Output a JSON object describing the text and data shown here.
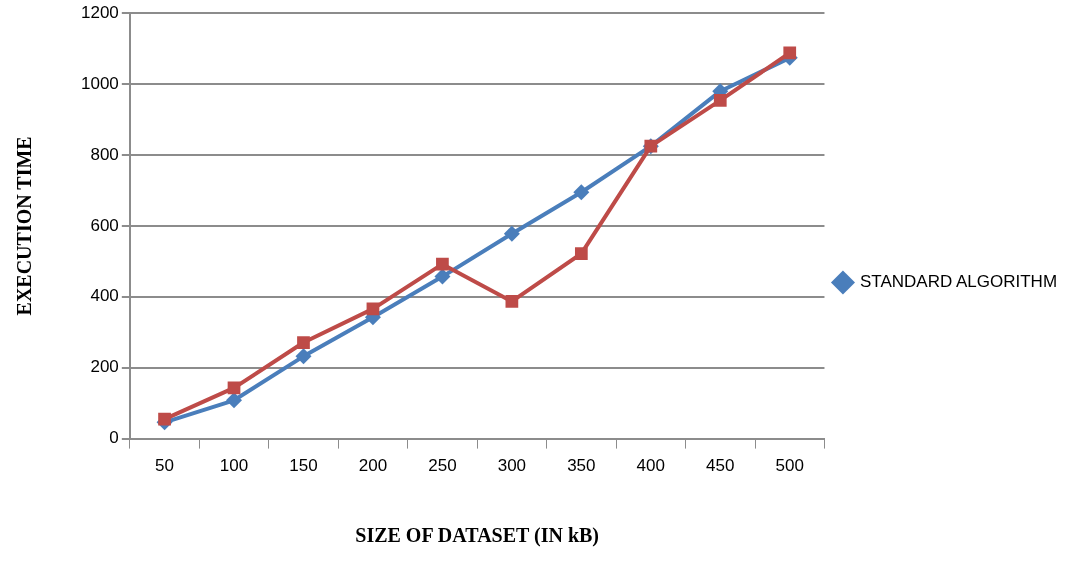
{
  "chart_data": {
    "type": "line",
    "xlabel": "SIZE OF DATASET (IN kB)",
    "ylabel": "EXECUTION TIME",
    "categories": [
      "50",
      "100",
      "150",
      "200",
      "250",
      "300",
      "350",
      "400",
      "450",
      "500"
    ],
    "series": [
      {
        "name": "STANDARD ALGORITHM",
        "color": "#4a7ebb",
        "marker": "diamond",
        "values": [
          46,
          108,
          232,
          342,
          457,
          578,
          695,
          825,
          980,
          1074
        ]
      },
      {
        "color": "#be4b48",
        "marker": "square",
        "values": [
          55,
          143,
          271,
          366,
          492,
          387,
          522,
          825,
          954,
          1088
        ]
      }
    ],
    "ylim": [
      0,
      1200
    ],
    "yticks": [
      0,
      200,
      400,
      600,
      800,
      1000,
      1200
    ],
    "grid": "y",
    "legend": "right"
  }
}
